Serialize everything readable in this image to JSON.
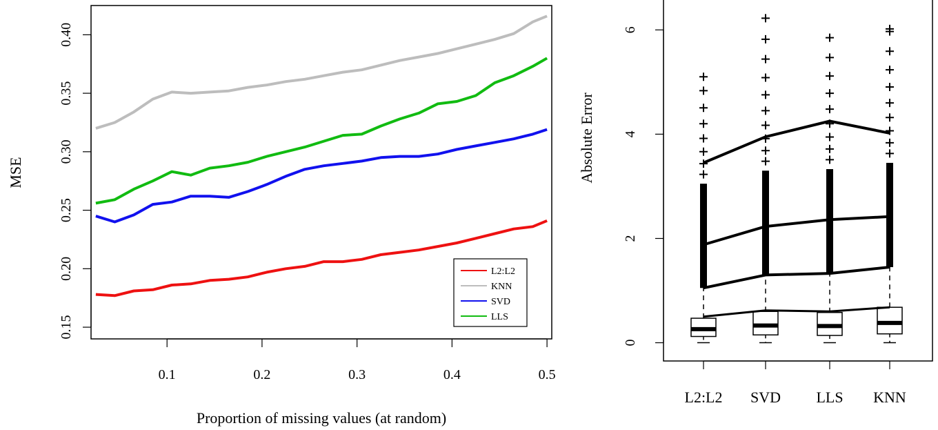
{
  "chart_data": [
    {
      "type": "line",
      "title": "",
      "xlabel": "Proportion of missing values (at random)",
      "ylabel": "MSE",
      "xlim": [
        0.02,
        0.505
      ],
      "ylim": [
        0.14,
        0.425
      ],
      "xticks": [
        0.1,
        0.2,
        0.3,
        0.4,
        0.5
      ],
      "xtick_labels": [
        "0.1",
        "0.2",
        "0.3",
        "0.4",
        "0.5"
      ],
      "yticks": [
        0.15,
        0.2,
        0.25,
        0.3,
        0.35,
        0.4
      ],
      "ytick_labels": [
        "0.15",
        "0.20",
        "0.25",
        "0.30",
        "0.35",
        "0.40"
      ],
      "grid": false,
      "legend_position": "bottom-right",
      "x": [
        0.025,
        0.045,
        0.065,
        0.085,
        0.105,
        0.125,
        0.145,
        0.165,
        0.185,
        0.205,
        0.225,
        0.245,
        0.265,
        0.285,
        0.305,
        0.325,
        0.345,
        0.365,
        0.385,
        0.405,
        0.425,
        0.445,
        0.465,
        0.485,
        0.5
      ],
      "series": [
        {
          "name": "L2:L2",
          "color": "#ee1111",
          "values": [
            0.178,
            0.177,
            0.181,
            0.182,
            0.186,
            0.187,
            0.19,
            0.191,
            0.193,
            0.197,
            0.2,
            0.202,
            0.206,
            0.206,
            0.208,
            0.212,
            0.214,
            0.216,
            0.219,
            0.222,
            0.226,
            0.23,
            0.234,
            0.236,
            0.241
          ]
        },
        {
          "name": "KNN",
          "color": "#bdbdbd",
          "values": [
            0.32,
            0.325,
            0.334,
            0.345,
            0.351,
            0.35,
            0.351,
            0.352,
            0.355,
            0.357,
            0.36,
            0.362,
            0.365,
            0.368,
            0.37,
            0.374,
            0.378,
            0.381,
            0.384,
            0.388,
            0.392,
            0.396,
            0.401,
            0.411,
            0.416
          ]
        },
        {
          "name": "SVD",
          "color": "#1111ee",
          "values": [
            0.245,
            0.24,
            0.246,
            0.255,
            0.257,
            0.262,
            0.262,
            0.261,
            0.266,
            0.272,
            0.279,
            0.285,
            0.288,
            0.29,
            0.292,
            0.295,
            0.296,
            0.296,
            0.298,
            0.302,
            0.305,
            0.308,
            0.311,
            0.315,
            0.319
          ]
        },
        {
          "name": "LLS",
          "color": "#11bb11",
          "values": [
            0.256,
            0.259,
            0.268,
            0.275,
            0.283,
            0.28,
            0.286,
            0.288,
            0.291,
            0.296,
            0.3,
            0.304,
            0.309,
            0.314,
            0.315,
            0.322,
            0.328,
            0.333,
            0.341,
            0.343,
            0.348,
            0.359,
            0.365,
            0.373,
            0.38
          ]
        }
      ]
    },
    {
      "type": "boxplot",
      "title": "",
      "xlabel": "",
      "ylabel": "Absolute Error",
      "ylim": [
        -0.35,
        6.6
      ],
      "yticks": [
        0,
        2,
        4,
        6
      ],
      "ytick_labels": [
        "0",
        "2",
        "4",
        "6"
      ],
      "categories": [
        "L2:L2",
        "SVD",
        "LLS",
        "KNN"
      ],
      "boxes": [
        {
          "name": "L2:L2",
          "q1": 0.12,
          "median": 0.26,
          "q3": 0.47,
          "whisker_low": 0.0,
          "whisker_high": 1.05,
          "outliers_min": 1.05,
          "outliers_max": 5.1
        },
        {
          "name": "SVD",
          "q1": 0.15,
          "median": 0.33,
          "q3": 0.6,
          "whisker_low": 0.0,
          "whisker_high": 1.3,
          "outliers_min": 1.3,
          "outliers_max": 6.25
        },
        {
          "name": "LLS",
          "q1": 0.14,
          "median": 0.32,
          "q3": 0.58,
          "whisker_low": 0.0,
          "whisker_high": 1.33,
          "outliers_min": 1.33,
          "outliers_max": 5.85
        },
        {
          "name": "KNN",
          "q1": 0.17,
          "median": 0.38,
          "q3": 0.68,
          "whisker_low": 0.0,
          "whisker_high": 1.45,
          "outliers_min": 1.45,
          "outliers_max": 6.02
        }
      ],
      "overlay_lines": [
        {
          "values": [
            1.05,
            1.3,
            1.33,
            1.45
          ]
        },
        {
          "values": [
            1.88,
            2.23,
            2.36,
            2.42
          ]
        },
        {
          "values": [
            3.45,
            3.95,
            4.25,
            4.02
          ]
        },
        {
          "values": [
            0.5,
            0.62,
            0.6,
            0.68
          ]
        }
      ]
    }
  ]
}
